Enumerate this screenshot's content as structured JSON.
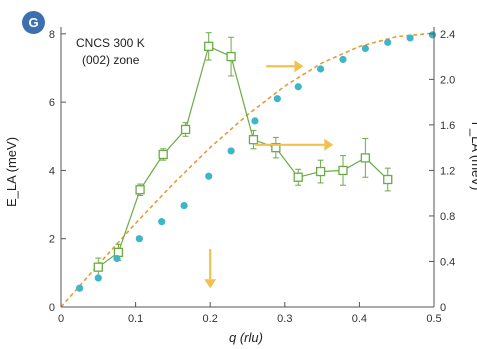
{
  "panel": {
    "letter": "G",
    "badge_color": "#3b6fb0"
  },
  "annotation": {
    "line1": "CNCS 300 K",
    "line2": "(002) zone"
  },
  "chart_data": {
    "type": "scatter",
    "xlabel": "q (rlu)",
    "ylabel_left": "E_LA (meV)",
    "ylabel_right": "Γ_LA (meV)",
    "xlim": [
      0,
      0.5
    ],
    "ylim_left": [
      0,
      8.2
    ],
    "ylim_right": [
      0,
      2.46
    ],
    "x_ticks": [
      0,
      0.1,
      0.2,
      0.3,
      0.4,
      0.5
    ],
    "x_tick_labels": [
      "0",
      "0.1",
      "0.2",
      "0.3",
      "0.4",
      "0.5"
    ],
    "y_left_ticks": [
      0,
      2,
      4,
      6,
      8
    ],
    "y_left_tick_labels": [
      "0",
      "2",
      "4",
      "6",
      "8"
    ],
    "y_right_ticks": [
      0,
      0.4,
      0.8,
      1.2,
      1.6,
      2.0,
      2.4
    ],
    "y_right_tick_labels": [
      "0",
      "0.4",
      "0.8",
      "1.2",
      "1.6",
      "2.0",
      "2.4"
    ],
    "series": [
      {
        "kind": "energy_points",
        "axis": "left",
        "color": "#3db6c9",
        "x": [
          0.025,
          0.05,
          0.075,
          0.105,
          0.135,
          0.165,
          0.198,
          0.228,
          0.26,
          0.29,
          0.318,
          0.348,
          0.378,
          0.408,
          0.438,
          0.468,
          0.498
        ],
        "y": [
          0.55,
          0.85,
          1.42,
          2.0,
          2.5,
          2.97,
          3.83,
          4.57,
          5.45,
          6.1,
          6.45,
          6.97,
          7.25,
          7.57,
          7.75,
          7.88,
          7.97
        ]
      },
      {
        "kind": "dispersion_fit",
        "axis": "left",
        "color": "#e69a3c",
        "x": [
          0,
          0.05,
          0.1,
          0.15,
          0.2,
          0.25,
          0.3,
          0.35,
          0.4,
          0.45,
          0.5
        ],
        "y": [
          0,
          1.24,
          2.45,
          3.6,
          4.67,
          5.63,
          6.47,
          7.15,
          7.63,
          7.92,
          8.02
        ]
      },
      {
        "kind": "linewidth_points",
        "axis": "right",
        "color": "#6aab45",
        "x": [
          0.05,
          0.077,
          0.106,
          0.137,
          0.167,
          0.198,
          0.228,
          0.258,
          0.288,
          0.318,
          0.348,
          0.378,
          0.408,
          0.438
        ],
        "y": [
          0.35,
          0.48,
          1.03,
          1.34,
          1.56,
          2.29,
          2.2,
          1.47,
          1.4,
          1.14,
          1.19,
          1.2,
          1.31,
          1.12
        ],
        "err": [
          0.08,
          0.07,
          0.05,
          0.05,
          0.06,
          0.12,
          0.17,
          0.08,
          0.09,
          0.07,
          0.1,
          0.13,
          0.17,
          0.1
        ]
      }
    ],
    "arrows": [
      {
        "color": "#f2c04c",
        "from_x": 0.2,
        "from_y": 1.7,
        "to_x": 0.2,
        "to_y": 0.55
      },
      {
        "color": "#f2c04c",
        "from_x": 0.275,
        "from_y": 7.05,
        "to_x": 0.325,
        "to_y": 7.05
      },
      {
        "color": "#f2c04c",
        "from_x": 0.26,
        "from_y": 4.75,
        "to_x": 0.365,
        "to_y": 4.75
      }
    ]
  }
}
